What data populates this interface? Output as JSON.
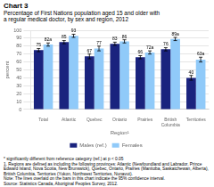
{
  "chart_data": {
    "type": "bar",
    "title": "Chart 3",
    "subtitle": [
      "Percentage of First Nations population aged 15 and older with",
      "a regular medical doctor, by sex and region, 2012"
    ],
    "xlabel": "Region¹",
    "ylabel": "percent",
    "categories": [
      "Total",
      "Atlantic",
      "Quebec",
      "Ontario",
      "Prairies",
      "British\nColumbia",
      "Territories"
    ],
    "series": [
      {
        "name": "Males (ref.)",
        "color": "#1a237e",
        "values": [
          75,
          85,
          67,
          83,
          66,
          76,
          40
        ],
        "errors": [
          2,
          2,
          3,
          2,
          2,
          2,
          3
        ]
      },
      {
        "name": "Females",
        "color": "#90caf9",
        "values": [
          82,
          93,
          77,
          86,
          72,
          89,
          63
        ],
        "errors": [
          2,
          2,
          3,
          2,
          2,
          2,
          3
        ],
        "value_labels": [
          "82a",
          "93",
          "77",
          "86",
          "72a",
          "89a",
          "63a"
        ]
      }
    ],
    "ylim": [
      0,
      100
    ],
    "yticks": [
      0,
      10,
      20,
      30,
      40,
      50,
      60,
      70,
      80,
      90,
      100
    ],
    "grid": true,
    "legend": "bottom",
    "data_labels": true,
    "footnotes": [
      "* significantly different from reference category (ref.) at p < 0.05",
      "1. Regions are defined as including the following provinces: Atlantic (Newfoundland and Labrador, Prince Edward Island, Nova Scotia, New Brunswick), Quebec, Ontario, Prairies (Manitoba, Saskatchewan, Alberta), British Columbia, Territories (Yukon, Northwest Territories, Nunavut).",
      "Note: The lines overlaid on the bars in this chart indicate the 95% confidence interval.",
      "Source: Statistics Canada, Aboriginal Peoples Survey, 2012."
    ]
  }
}
